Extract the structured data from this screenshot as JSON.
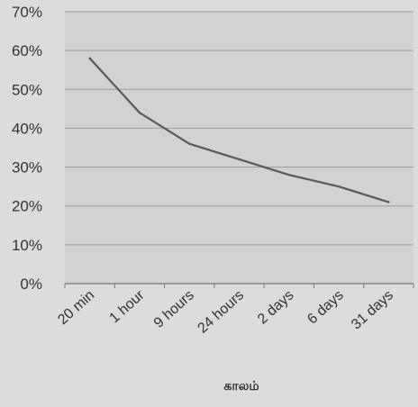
{
  "chart_data": {
    "type": "line",
    "title": "",
    "xlabel": "காலம்",
    "ylabel": "",
    "categories": [
      "20 min",
      "1 hour",
      "9 hours",
      "24 hours",
      "2 days",
      "6 days",
      "31 days"
    ],
    "series": [
      {
        "values": [
          58,
          44,
          36,
          32,
          28,
          25,
          21
        ]
      }
    ],
    "ylim": [
      0,
      70
    ],
    "yticks": [
      "0%",
      "10%",
      "20%",
      "30%",
      "40%",
      "50%",
      "60%",
      "70%"
    ],
    "grid": true,
    "legend": "none",
    "colors": {
      "page_background": "#dcdcdc",
      "plot_background": "#d2d2d2",
      "line": "#5a5a5a",
      "gridline": "#9a9a9a",
      "text": "#333333"
    }
  }
}
